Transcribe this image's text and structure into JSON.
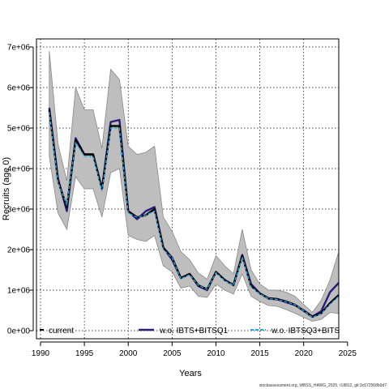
{
  "chart_data": {
    "type": "line",
    "xlabel": "Years",
    "ylabel": "Recruits (age 0)",
    "xlim": [
      1990,
      2024
    ],
    "ylim": [
      -200000,
      7200000
    ],
    "x_ticks": [
      1990,
      1995,
      2000,
      2005,
      2010,
      2015,
      2020,
      2025
    ],
    "x_tick_labels": [
      "1990",
      "1995",
      "2000",
      "2005",
      "2010",
      "2015",
      "2020",
      "2025"
    ],
    "y_ticks": [
      0,
      1000000,
      2000000,
      3000000,
      4000000,
      5000000,
      6000000,
      7000000
    ],
    "y_tick_labels": [
      "0e+00",
      "1e+06",
      "2e+06",
      "3e+06",
      "4e+06",
      "5e+06",
      "6e+06",
      "7e+06"
    ],
    "grid": true,
    "legend_position": "bottom",
    "x": [
      1991,
      1992,
      1993,
      1994,
      1995,
      1996,
      1997,
      1998,
      1999,
      2000,
      2001,
      2002,
      2003,
      2004,
      2005,
      2006,
      2007,
      2008,
      2009,
      2010,
      2011,
      2012,
      2013,
      2014,
      2015,
      2016,
      2017,
      2018,
      2019,
      2020,
      2021,
      2022,
      2023,
      2024
    ],
    "band": {
      "upper": [
        6900000,
        4600000,
        3700000,
        6000000,
        5450000,
        5450000,
        4500000,
        6450000,
        6200000,
        4550000,
        4350000,
        4400000,
        4550000,
        2800000,
        2450000,
        1950000,
        1750000,
        1420000,
        1270000,
        1850000,
        1600000,
        1400000,
        2500000,
        1500000,
        1150000,
        1000000,
        1000000,
        950000,
        850000,
        650000,
        450000,
        750000,
        1250000,
        1950000
      ],
      "lower": [
        4300000,
        2900000,
        2500000,
        3800000,
        3500000,
        3500000,
        2800000,
        3900000,
        4000000,
        2350000,
        2250000,
        2200000,
        2350000,
        1600000,
        1450000,
        1050000,
        1100000,
        850000,
        820000,
        1150000,
        1000000,
        900000,
        1400000,
        850000,
        720000,
        620000,
        600000,
        520000,
        430000,
        330000,
        230000,
        280000,
        450000,
        420000
      ]
    },
    "series": [
      {
        "name": "current",
        "color": "#000000",
        "style": "solid",
        "values": [
          5450000,
          3700000,
          3050000,
          4700000,
          4350000,
          4350000,
          3500000,
          5050000,
          5050000,
          2950000,
          2800000,
          2850000,
          3000000,
          2050000,
          1800000,
          1300000,
          1400000,
          1120000,
          1020000,
          1450000,
          1250000,
          1130000,
          1850000,
          1100000,
          920000,
          800000,
          780000,
          720000,
          640000,
          490000,
          340000,
          430000,
          680000,
          880000
        ]
      },
      {
        "name": "w.o. IBTS+BITSQ1",
        "color": "#2b1b7a",
        "style": "solid",
        "values": [
          5500000,
          3750000,
          2950000,
          4750000,
          4350000,
          4350000,
          3500000,
          5150000,
          5200000,
          2950000,
          2750000,
          2950000,
          3050000,
          2050000,
          1750000,
          1300000,
          1400000,
          1100000,
          1000000,
          1450000,
          1250000,
          1120000,
          1870000,
          1150000,
          920000,
          790000,
          770000,
          700000,
          630000,
          500000,
          350000,
          480000,
          950000,
          1180000
        ]
      },
      {
        "name": "w.o. IBTSQ3+BITS",
        "color": "#2aa7df",
        "style": "dashed",
        "values": [
          5400000,
          3650000,
          3100000,
          4650000,
          4300000,
          4300000,
          3450000,
          5000000,
          5000000,
          2900000,
          2800000,
          2850000,
          2950000,
          2000000,
          1800000,
          1280000,
          1380000,
          1120000,
          1020000,
          1430000,
          1230000,
          1120000,
          1820000,
          1080000,
          910000,
          790000,
          770000,
          710000,
          640000,
          490000,
          330000,
          420000,
          650000,
          850000
        ]
      }
    ]
  },
  "credit": "stockassessment.org, WBSS_HAWG_2025, r18812, git:3c672568b0d7"
}
